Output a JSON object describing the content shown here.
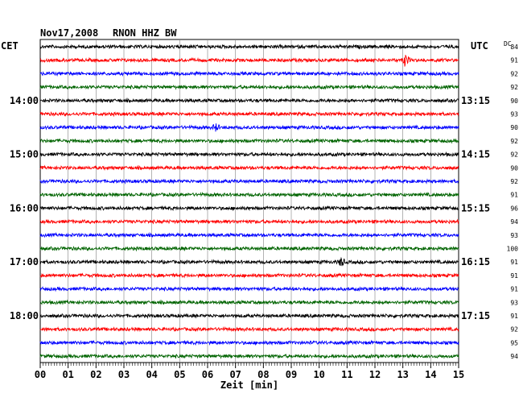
{
  "header": {
    "date": "Nov17,2008",
    "station": "RNON HHZ BW",
    "left_zone": "CET",
    "right_zone": "UTC",
    "dc_label": "DC"
  },
  "chart_data": {
    "type": "line",
    "description_kind": "helicorder",
    "xlabel": "Zeit [min]",
    "xlim": [
      0,
      15
    ],
    "x_ticks": [
      "00",
      "01",
      "02",
      "03",
      "04",
      "05",
      "06",
      "07",
      "08",
      "09",
      "10",
      "11",
      "12",
      "13",
      "14",
      "15"
    ],
    "trace_colors": [
      "#000000",
      "#ff0000",
      "#0000ff",
      "#006400"
    ],
    "trace_count": 24,
    "left_time_labels": [
      {
        "trace": 4,
        "label": "14:00"
      },
      {
        "trace": 8,
        "label": "15:00"
      },
      {
        "trace": 12,
        "label": "16:00"
      },
      {
        "trace": 16,
        "label": "17:00"
      },
      {
        "trace": 20,
        "label": "18:00"
      }
    ],
    "right_time_labels": [
      {
        "trace": 4,
        "label": "13:15"
      },
      {
        "trace": 8,
        "label": "14:15"
      },
      {
        "trace": 12,
        "label": "15:15"
      },
      {
        "trace": 16,
        "label": "16:15"
      },
      {
        "trace": 20,
        "label": "17:15"
      }
    ],
    "dc_values": [
      "84",
      "91",
      "92",
      "92",
      "90",
      "93",
      "90",
      "92",
      "92",
      "90",
      "92",
      "91",
      "96",
      "94",
      "93",
      "100",
      "91",
      "91",
      "91",
      "93",
      "91",
      "92",
      "95",
      "94"
    ],
    "events": [
      {
        "trace": 1,
        "minute": 13.1,
        "amplitude": 2.6
      },
      {
        "trace": 16,
        "minute": 10.8,
        "amplitude": 1.7
      },
      {
        "trace": 6,
        "minute": 6.3,
        "amplitude": 1.4
      }
    ],
    "grid": true
  }
}
